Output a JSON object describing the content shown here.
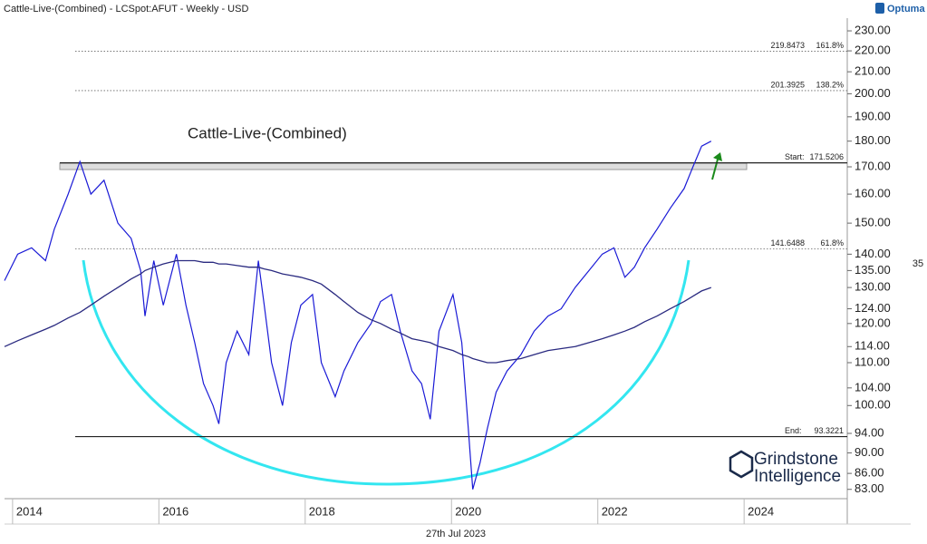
{
  "chart_data": {
    "type": "line",
    "header": "Cattle-Live-(Combined) - LCSpot:AFUT - Weekly - USD",
    "brand": "Optuma",
    "title": "Cattle-Live-(Combined)",
    "date_label": "27th Jul 2023",
    "watermark": [
      "Grindstone",
      "Intelligence"
    ],
    "side_label": "35",
    "log_scale": true,
    "x": [
      2013.89,
      2014.07,
      2014.26,
      2014.45,
      2014.57,
      2014.76,
      2014.92,
      2015.07,
      2015.25,
      2015.44,
      2015.62,
      2015.75,
      2015.81,
      2015.93,
      2016.06,
      2016.24,
      2016.37,
      2016.49,
      2016.61,
      2016.74,
      2016.82,
      2016.92,
      2017.07,
      2017.23,
      2017.36,
      2017.44,
      2017.54,
      2017.69,
      2017.81,
      2017.94,
      2018.1,
      2018.22,
      2018.41,
      2018.53,
      2018.72,
      2018.9,
      2019.03,
      2019.18,
      2019.3,
      2019.46,
      2019.59,
      2019.71,
      2019.83,
      2020.02,
      2020.14,
      2020.23,
      2020.29,
      2020.39,
      2020.49,
      2020.61,
      2020.76,
      2020.95,
      2021.13,
      2021.32,
      2021.5,
      2021.69,
      2021.88,
      2022.06,
      2022.22,
      2022.37,
      2022.5,
      2022.64,
      2022.81,
      2022.99,
      2023.18,
      2023.3,
      2023.42,
      2023.55
    ],
    "series": [
      {
        "color": "#1a1ad6",
        "values": [
          132,
          140,
          142,
          138,
          148,
          160,
          172,
          160,
          165,
          150,
          145,
          135,
          122,
          138,
          125,
          140,
          125,
          115,
          105,
          100,
          96,
          110,
          118,
          112,
          138,
          125,
          110,
          100,
          115,
          125,
          128,
          110,
          102,
          108,
          115,
          120,
          126,
          128,
          118,
          108,
          105,
          97,
          118,
          128,
          115,
          95,
          83,
          88,
          95,
          103,
          108,
          112,
          118,
          122,
          124,
          130,
          135,
          140,
          142,
          133,
          136,
          142,
          148,
          155,
          162,
          170,
          178,
          180
        ]
      },
      {
        "color": "#2a2a80",
        "values": [
          114,
          115.5,
          117,
          118.5,
          119.5,
          121.5,
          123,
          125,
          127.5,
          130,
          132.5,
          134,
          135,
          136,
          137,
          138,
          138,
          138,
          137.5,
          137.5,
          137,
          137,
          136.5,
          136,
          136,
          135.5,
          135,
          134,
          133.5,
          133,
          132,
          131,
          128,
          126,
          123,
          121,
          120,
          118.5,
          117.5,
          116,
          115.5,
          115,
          114,
          113,
          112,
          111.5,
          111,
          110.5,
          110,
          110,
          110.5,
          111,
          112,
          113,
          113.5,
          114,
          115,
          116,
          117,
          118,
          119,
          120.5,
          122,
          124,
          126,
          127.5,
          129,
          130
        ]
      }
    ],
    "levels": [
      {
        "value": 219.8473,
        "label": "161.8%",
        "dotted": true
      },
      {
        "value": 201.3925,
        "label": "138.2%",
        "dotted": true
      },
      {
        "value": 171.5206,
        "label": "Start:",
        "dotted": false
      },
      {
        "value": 141.6488,
        "label": "61.8%",
        "dotted": true
      },
      {
        "value": 93.3221,
        "label": "End:",
        "dotted": false
      }
    ],
    "xlim": [
      2013.89,
      2025.41
    ],
    "xticks": [
      2014,
      2016,
      2018,
      2020,
      2022,
      2024
    ],
    "ylim": [
      81.3,
      236.6
    ],
    "yticks": [
      {
        "value": 83,
        "label": "83.00"
      },
      {
        "value": 86,
        "label": "86.00"
      },
      {
        "value": 90,
        "label": "90.00"
      },
      {
        "value": 94,
        "label": "94.00"
      },
      {
        "value": 100,
        "label": "100.00"
      },
      {
        "value": 104,
        "label": "104.00"
      },
      {
        "value": 110,
        "label": "110.00"
      },
      {
        "value": 114,
        "label": "114.00"
      },
      {
        "value": 120,
        "label": "120.00"
      },
      {
        "value": 124,
        "label": "124.00"
      },
      {
        "value": 130,
        "label": "130.00"
      },
      {
        "value": 135,
        "label": "135.00"
      },
      {
        "value": 140,
        "label": "140.00"
      },
      {
        "value": 150,
        "label": "150.00"
      },
      {
        "value": 160,
        "label": "160.00"
      },
      {
        "value": 170,
        "label": "170.00"
      },
      {
        "value": 180,
        "label": "180.00"
      },
      {
        "value": 190,
        "label": "190.00"
      },
      {
        "value": 200,
        "label": "200.00"
      },
      {
        "value": 210,
        "label": "210.00"
      },
      {
        "value": 220,
        "label": "220.00"
      },
      {
        "value": 230,
        "label": "230.00"
      }
    ]
  }
}
